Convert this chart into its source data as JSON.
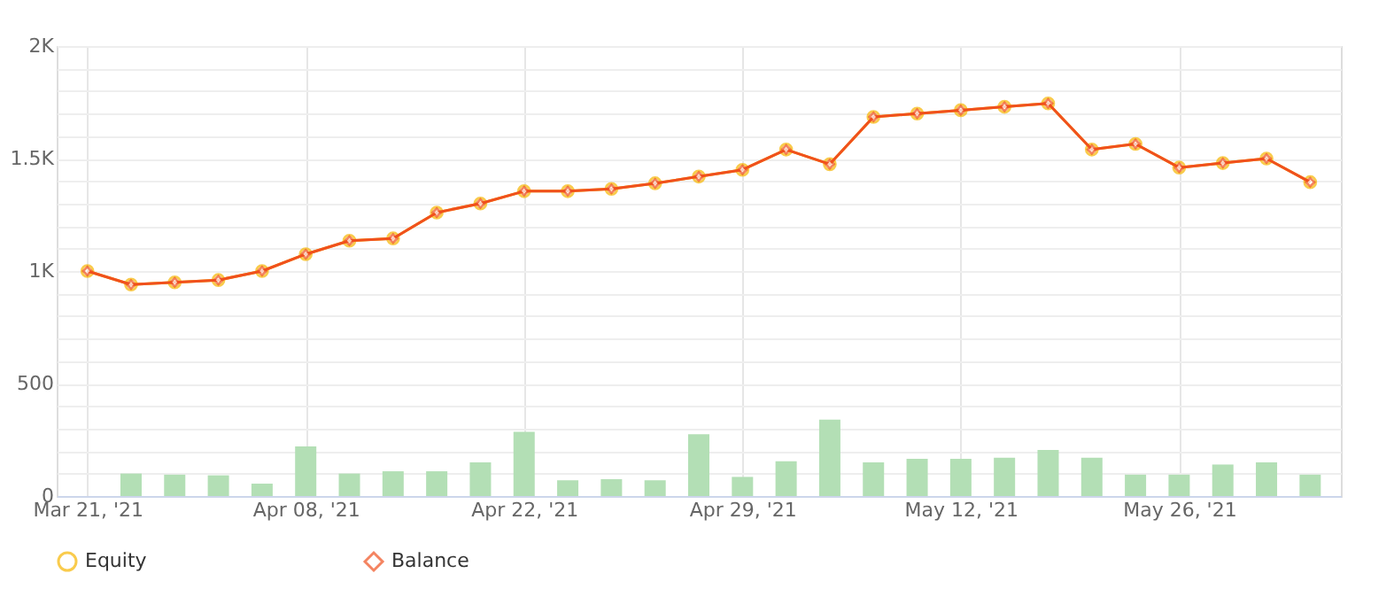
{
  "chart_data": {
    "type": "line",
    "categories": [
      "Mar 21, '21",
      null,
      null,
      null,
      null,
      "Apr 08, '21",
      null,
      null,
      null,
      null,
      "Apr 22, '21",
      null,
      null,
      null,
      null,
      "Apr 29, '21",
      null,
      null,
      null,
      null,
      "May 12, '21",
      null,
      null,
      null,
      null,
      "May 26, '21",
      null,
      null,
      null
    ],
    "series": [
      {
        "type": "bar",
        "color": "#b3dfb5",
        "values": [
          null,
          100,
          95,
          92,
          55,
          220,
          100,
          110,
          110,
          150,
          285,
          70,
          75,
          70,
          275,
          85,
          155,
          340,
          150,
          165,
          165,
          170,
          205,
          170,
          95,
          95,
          140,
          150,
          95
        ]
      },
      {
        "name": "Equity",
        "color": "#f7b500",
        "marker": "circle",
        "values": [
          1000,
          940,
          950,
          960,
          1000,
          1075,
          1135,
          1145,
          1260,
          1300,
          1355,
          1355,
          1365,
          1390,
          1420,
          1450,
          1540,
          1475,
          1685,
          1700,
          1715,
          1730,
          1745,
          1540,
          1565,
          1460,
          1480,
          1500,
          1395
        ]
      },
      {
        "name": "Balance",
        "color": "#f0501e",
        "marker": "diamond",
        "values": [
          1000,
          940,
          950,
          960,
          1000,
          1075,
          1135,
          1145,
          1260,
          1300,
          1355,
          1355,
          1365,
          1390,
          1420,
          1450,
          1540,
          1475,
          1685,
          1700,
          1715,
          1730,
          1745,
          1540,
          1565,
          1460,
          1480,
          1500,
          1395
        ]
      }
    ],
    "ylim": [
      0,
      2000
    ],
    "yticks": [
      {
        "value": 0,
        "label": "0"
      },
      {
        "value": 100,
        "label": null
      },
      {
        "value": 200,
        "label": null
      },
      {
        "value": 300,
        "label": null
      },
      {
        "value": 400,
        "label": null
      },
      {
        "value": 500,
        "label": "500"
      },
      {
        "value": 600,
        "label": null
      },
      {
        "value": 700,
        "label": null
      },
      {
        "value": 800,
        "label": null
      },
      {
        "value": 900,
        "label": null
      },
      {
        "value": 1000,
        "label": "1K"
      },
      {
        "value": 1100,
        "label": null
      },
      {
        "value": 1200,
        "label": null
      },
      {
        "value": 1300,
        "label": null
      },
      {
        "value": 1400,
        "label": null
      },
      {
        "value": 1500,
        "label": "1.5K"
      },
      {
        "value": 1600,
        "label": null
      },
      {
        "value": 1700,
        "label": null
      },
      {
        "value": 1800,
        "label": null
      },
      {
        "value": 1900,
        "label": null
      },
      {
        "value": 2000,
        "label": "2K"
      }
    ],
    "grid": true,
    "legend": "bottom",
    "line_style": "solid"
  }
}
